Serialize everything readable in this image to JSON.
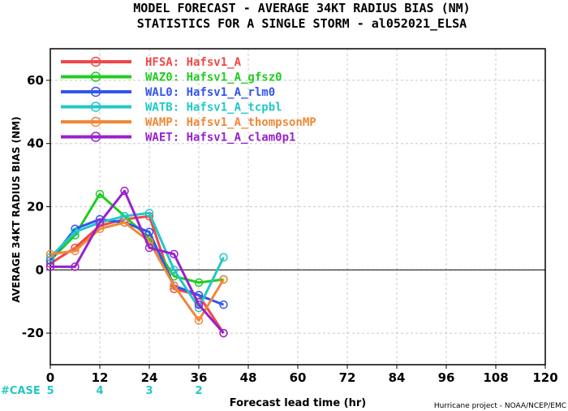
{
  "chart_data": {
    "type": "line",
    "title": "MODEL FORECAST - AVERAGE 34KT RADIUS BIAS (NM)",
    "subtitle": "STATISTICS FOR A SINGLE STORM - al052021_ELSA",
    "xlabel": "Forecast lead time (hr)",
    "ylabel": "AVERAGE 34KT RADIUS BIAS (NM)",
    "xlim": [
      0,
      120
    ],
    "ylim": [
      -30,
      70
    ],
    "xticks": [
      0,
      12,
      24,
      36,
      48,
      60,
      72,
      84,
      96,
      108,
      120
    ],
    "yticks": [
      -20,
      0,
      20,
      40,
      60
    ],
    "zero_line": true,
    "legend_position": "top-left",
    "series": [
      {
        "name": "HFSA: Hafsv1_A",
        "color": "#f04848",
        "x": [
          0,
          6,
          12,
          18,
          24,
          30,
          36,
          42
        ],
        "y": [
          2,
          7,
          14,
          16,
          17,
          -6,
          -8,
          -20
        ]
      },
      {
        "name": "WAZ0: Hafsv1_A_gfsz0",
        "color": "#22cc22",
        "x": [
          0,
          6,
          12,
          18,
          24,
          30,
          36,
          42
        ],
        "y": [
          3,
          11,
          24,
          17,
          10,
          -2,
          -4,
          -3
        ]
      },
      {
        "name": "WAL0: Hafsv1_A_rlm0",
        "color": "#3355ee",
        "x": [
          0,
          6,
          12,
          18,
          24,
          30,
          36,
          42
        ],
        "y": [
          3,
          13,
          16,
          15,
          12,
          -5,
          -8,
          -11
        ]
      },
      {
        "name": "WATB: Hafsv1_A_tcpbl",
        "color": "#22c8c8",
        "x": [
          0,
          6,
          12,
          18,
          24,
          30,
          36,
          42
        ],
        "y": [
          4,
          12,
          15,
          17,
          18,
          0,
          -12,
          4
        ]
      },
      {
        "name": "WAMP: Hafsv1_A_thompsonMP",
        "color": "#f08838",
        "x": [
          0,
          6,
          12,
          18,
          24,
          30,
          36,
          42
        ],
        "y": [
          5,
          6,
          13,
          15,
          9,
          -5,
          -16,
          -3
        ]
      },
      {
        "name": "WAET: Hafsv1_A_clam0p1",
        "color": "#9922cc",
        "x": [
          0,
          6,
          12,
          18,
          24,
          30,
          36,
          42
        ],
        "y": [
          1,
          1,
          15,
          25,
          7,
          5,
          -11,
          -20
        ]
      }
    ],
    "cases": {
      "label": "#CASE",
      "x": [
        0,
        12,
        24,
        36
      ],
      "values": [
        "5",
        "4",
        "3",
        "2"
      ]
    },
    "credit": "Hurricane project - NOAA/NCEP/EMC"
  }
}
